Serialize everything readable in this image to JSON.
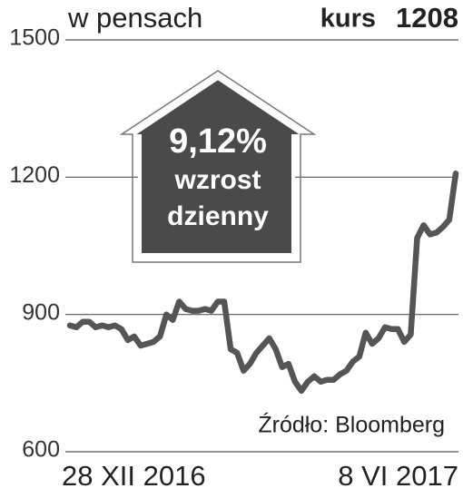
{
  "chart_data": {
    "type": "line",
    "unit_label": "w pensach",
    "current": {
      "label": "kurs",
      "value": 1208
    },
    "annotation": {
      "change": {
        "value": 9.12,
        "label": "9,12%"
      },
      "lines": [
        "wzrost",
        "dzienny"
      ]
    },
    "source": "Źródło: Bloomberg",
    "categories": [
      "28 XII 2016",
      null,
      null,
      null,
      null,
      null,
      null,
      null,
      null,
      null,
      null,
      null,
      null,
      null,
      null,
      null,
      null,
      null,
      null,
      null,
      null,
      null,
      null,
      null,
      null,
      null,
      null,
      null,
      null,
      null,
      null,
      null,
      null,
      null,
      null,
      null,
      null,
      null,
      null,
      null,
      null,
      null,
      null,
      null,
      null,
      null,
      null,
      null,
      null,
      null,
      null,
      null,
      null,
      null,
      null,
      null,
      null,
      null,
      null,
      null,
      "8 VI 2017"
    ],
    "values": [
      876,
      872,
      884,
      884,
      872,
      876,
      872,
      876,
      868,
      844,
      852,
      832,
      836,
      840,
      852,
      900,
      888,
      928,
      912,
      908,
      908,
      912,
      908,
      928,
      928,
      824,
      816,
      777,
      792,
      816,
      832,
      848,
      824,
      785,
      792,
      753,
      733,
      753,
      765,
      753,
      757,
      757,
      769,
      777,
      797,
      808,
      860,
      836,
      848,
      872,
      868,
      868,
      840,
      856,
      1067,
      1095,
      1075,
      1079,
      1091,
      1107,
      1208
    ],
    "color": "#555555",
    "ylim": [
      600,
      1500
    ],
    "yticks": [
      600,
      900,
      1200,
      1500
    ],
    "grid": true
  }
}
